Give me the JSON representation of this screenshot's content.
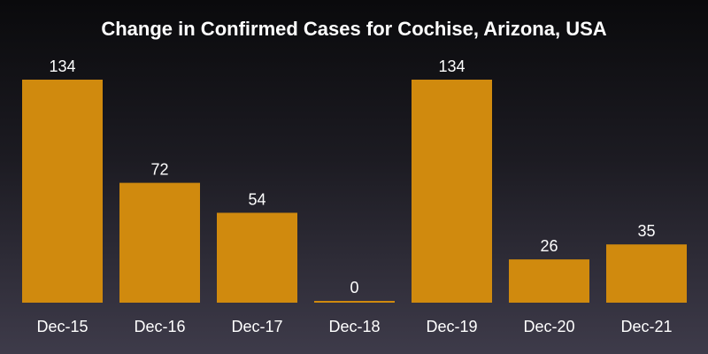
{
  "chart_data": {
    "type": "bar",
    "title": "Change in Confirmed Cases for Cochise, Arizona, USA",
    "categories": [
      "Dec-15",
      "Dec-16",
      "Dec-17",
      "Dec-18",
      "Dec-19",
      "Dec-20",
      "Dec-21"
    ],
    "values": [
      134,
      72,
      54,
      0,
      134,
      26,
      35
    ],
    "data_labels": [
      "134",
      "72",
      "54",
      "0",
      "134",
      "26",
      "35"
    ],
    "xlabel": "",
    "ylabel": "",
    "ylim": [
      0,
      134
    ],
    "grid": false,
    "legend": "none",
    "bar_color": "#d08a0e",
    "text_color": "#ffffff"
  }
}
